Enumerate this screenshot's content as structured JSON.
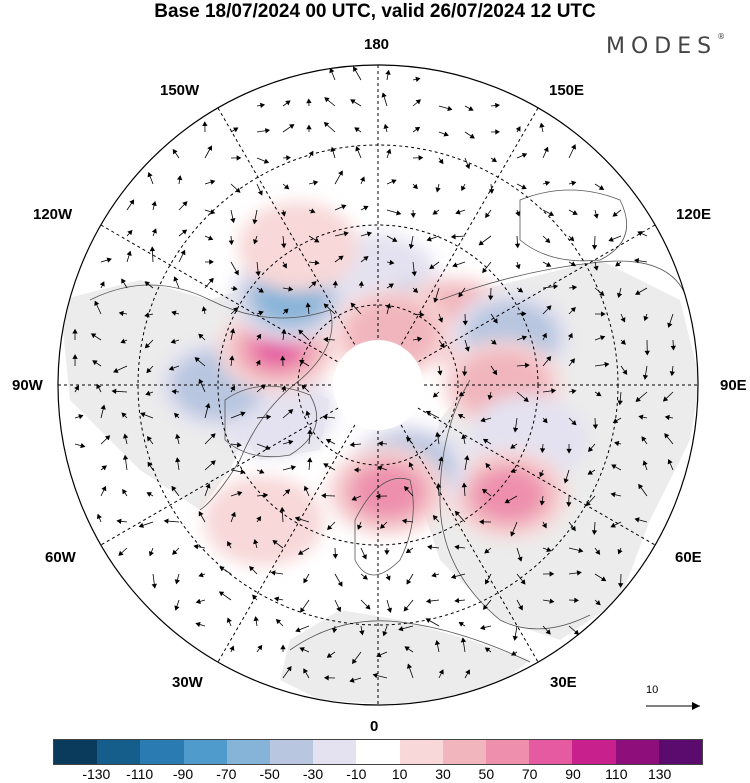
{
  "title": "Base 18/07/2024 00 UTC, valid 26/07/2024 12 UTC",
  "brand": "MODES",
  "brand_mark": "®",
  "longitude_labels": {
    "top": "180",
    "bottom": "0",
    "left": "90W",
    "right": "90E",
    "upper_left_1": "150W",
    "upper_left_2": "120W",
    "upper_right_1": "150E",
    "upper_right_2": "120E",
    "lower_left_1": "60W",
    "lower_left_2": "30W",
    "lower_right_1": "60E",
    "lower_right_2": "30E"
  },
  "reference_vector": {
    "label": "10"
  },
  "colorbar": {
    "colors": [
      "#0b3b5c",
      "#155e8c",
      "#2b7bb3",
      "#4f9ccc",
      "#86b4d9",
      "#b8c6e0",
      "#e4e2f0",
      "#ffffff",
      "#f8d8d8",
      "#f1b6bd",
      "#ee8fae",
      "#e55aa0",
      "#c8208c",
      "#8e0e7c",
      "#5b0a6e"
    ],
    "tick_labels": [
      "-130",
      "-110",
      "-90",
      "-70",
      "-50",
      "-30",
      "-10",
      "10",
      "30",
      "50",
      "70",
      "90",
      "110",
      "130"
    ]
  },
  "anomaly_cells": [
    {
      "lon": 180,
      "lat": 60,
      "sign": "neg",
      "level": 1
    },
    {
      "lon": 150,
      "lat": 68,
      "sign": "neg",
      "level": 2
    },
    {
      "lon": 130,
      "lat": 62,
      "sign": "pos",
      "level": 2
    },
    {
      "lon": 110,
      "lat": 50,
      "sign": "neg",
      "level": 2
    },
    {
      "lon": 90,
      "lat": 55,
      "sign": "pos",
      "level": 2
    },
    {
      "lon": 70,
      "lat": 45,
      "sign": "neg",
      "level": 1
    },
    {
      "lon": 50,
      "lat": 42,
      "sign": "pos",
      "level": 3
    },
    {
      "lon": 20,
      "lat": 65,
      "sign": "neg",
      "level": 2
    },
    {
      "lon": 5,
      "lat": 60,
      "sign": "pos",
      "level": 3
    },
    {
      "lon": -40,
      "lat": 40,
      "sign": "pos",
      "level": 1
    },
    {
      "lon": -75,
      "lat": 60,
      "sign": "neg",
      "level": 1
    },
    {
      "lon": -90,
      "lat": 45,
      "sign": "neg",
      "level": 2
    },
    {
      "lon": -110,
      "lat": 60,
      "sign": "pos",
      "level": 4
    },
    {
      "lon": -135,
      "lat": 55,
      "sign": "neg",
      "level": 3
    },
    {
      "lon": -150,
      "lat": 45,
      "sign": "pos",
      "level": 1
    },
    {
      "lon": 165,
      "lat": 75,
      "sign": "pos",
      "level": 2
    }
  ]
}
